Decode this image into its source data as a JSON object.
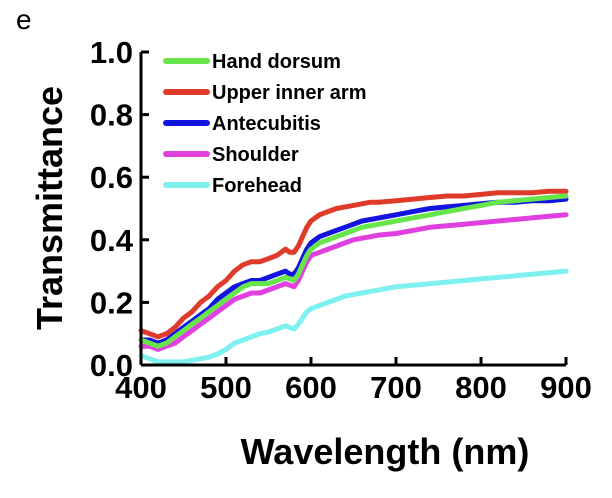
{
  "panel_label": "e",
  "colors": {
    "hand_dorsum": "#66e64a",
    "upper_inner_arm": "#e03a2a",
    "antecubitis": "#1414e0",
    "shoulder": "#e040e0",
    "forehead": "#7ef0f0"
  },
  "chart_data": {
    "type": "line",
    "title": "",
    "xlabel": "Wavelength (nm)",
    "ylabel": "Transmittance",
    "xlim": [
      400,
      900
    ],
    "ylim": [
      0.0,
      1.0
    ],
    "xticks": [
      400,
      500,
      600,
      700,
      800,
      900
    ],
    "xtick_labels": [
      "400",
      "500",
      "600",
      "700",
      "800",
      "900"
    ],
    "yticks": [
      0.0,
      0.2,
      0.4,
      0.6,
      0.8,
      1.0
    ],
    "ytick_labels": [
      "0.0",
      "0.2",
      "0.4",
      "0.6",
      "0.8",
      "1.0"
    ],
    "grid": false,
    "legend_position": "top-left",
    "x": [
      400,
      410,
      420,
      430,
      440,
      450,
      460,
      470,
      480,
      490,
      500,
      510,
      520,
      530,
      540,
      550,
      560,
      570,
      575,
      580,
      585,
      590,
      595,
      600,
      610,
      620,
      630,
      640,
      650,
      660,
      670,
      680,
      700,
      720,
      740,
      760,
      780,
      800,
      820,
      840,
      860,
      880,
      900
    ],
    "series": [
      {
        "name": "Hand dorsum",
        "color": "#66e64a",
        "values": [
          0.08,
          0.07,
          0.06,
          0.07,
          0.09,
          0.11,
          0.13,
          0.15,
          0.17,
          0.19,
          0.21,
          0.23,
          0.25,
          0.26,
          0.26,
          0.26,
          0.27,
          0.28,
          0.275,
          0.27,
          0.29,
          0.32,
          0.35,
          0.37,
          0.39,
          0.4,
          0.41,
          0.42,
          0.43,
          0.44,
          0.445,
          0.45,
          0.46,
          0.47,
          0.48,
          0.49,
          0.5,
          0.51,
          0.52,
          0.525,
          0.53,
          0.535,
          0.54
        ]
      },
      {
        "name": "Upper inner arm",
        "color": "#e03a2a",
        "values": [
          0.11,
          0.1,
          0.09,
          0.1,
          0.12,
          0.15,
          0.17,
          0.2,
          0.22,
          0.25,
          0.27,
          0.3,
          0.32,
          0.33,
          0.33,
          0.34,
          0.35,
          0.37,
          0.36,
          0.36,
          0.38,
          0.41,
          0.44,
          0.46,
          0.48,
          0.49,
          0.5,
          0.505,
          0.51,
          0.515,
          0.52,
          0.52,
          0.525,
          0.53,
          0.535,
          0.54,
          0.54,
          0.545,
          0.55,
          0.55,
          0.55,
          0.555,
          0.555
        ]
      },
      {
        "name": "Antecubitis",
        "color": "#1414e0",
        "values": [
          0.08,
          0.08,
          0.07,
          0.08,
          0.1,
          0.12,
          0.14,
          0.16,
          0.18,
          0.21,
          0.23,
          0.25,
          0.26,
          0.27,
          0.27,
          0.28,
          0.29,
          0.3,
          0.29,
          0.29,
          0.31,
          0.34,
          0.37,
          0.39,
          0.41,
          0.42,
          0.43,
          0.44,
          0.45,
          0.46,
          0.465,
          0.47,
          0.48,
          0.49,
          0.5,
          0.505,
          0.51,
          0.515,
          0.52,
          0.52,
          0.525,
          0.525,
          0.53
        ]
      },
      {
        "name": "Shoulder",
        "color": "#e040e0",
        "values": [
          0.06,
          0.06,
          0.05,
          0.06,
          0.07,
          0.09,
          0.11,
          0.13,
          0.15,
          0.17,
          0.19,
          0.21,
          0.22,
          0.23,
          0.23,
          0.24,
          0.25,
          0.26,
          0.255,
          0.25,
          0.27,
          0.3,
          0.33,
          0.35,
          0.36,
          0.37,
          0.38,
          0.39,
          0.4,
          0.405,
          0.41,
          0.415,
          0.42,
          0.43,
          0.44,
          0.445,
          0.45,
          0.455,
          0.46,
          0.465,
          0.47,
          0.475,
          0.48
        ]
      },
      {
        "name": "Forehead",
        "color": "#7ef0f0",
        "values": [
          0.03,
          0.02,
          0.01,
          0.01,
          0.01,
          0.01,
          0.015,
          0.02,
          0.025,
          0.035,
          0.05,
          0.07,
          0.08,
          0.09,
          0.1,
          0.105,
          0.115,
          0.125,
          0.12,
          0.115,
          0.13,
          0.15,
          0.17,
          0.18,
          0.19,
          0.2,
          0.21,
          0.22,
          0.225,
          0.23,
          0.235,
          0.24,
          0.25,
          0.255,
          0.26,
          0.265,
          0.27,
          0.275,
          0.28,
          0.285,
          0.29,
          0.295,
          0.3
        ]
      }
    ]
  }
}
